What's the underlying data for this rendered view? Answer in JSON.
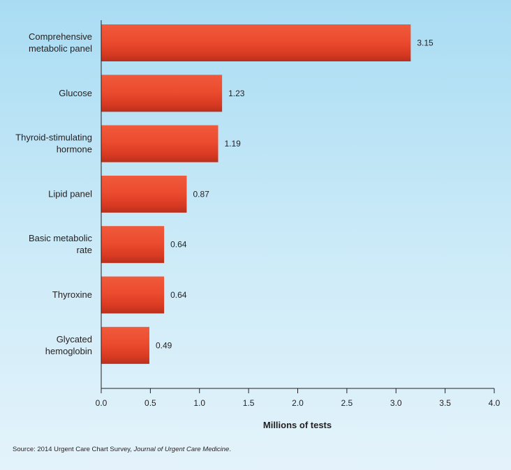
{
  "chart_data": {
    "type": "bar",
    "orientation": "horizontal",
    "categories": [
      [
        "Comprehensive",
        "metabolic panel"
      ],
      [
        "Glucose"
      ],
      [
        "Thyroid-stimulating",
        "hormone"
      ],
      [
        "Lipid panel"
      ],
      [
        "Basic metabolic",
        "rate"
      ],
      [
        "Thyroxine"
      ],
      [
        "Glycated",
        "hemoglobin"
      ]
    ],
    "values": [
      3.15,
      1.23,
      1.19,
      0.87,
      0.64,
      0.64,
      0.49
    ],
    "value_labels": [
      "3.15",
      "1.23",
      "1.19",
      "0.87",
      "0.64",
      "0.64",
      "0.49"
    ],
    "xlabel": "Millions of tests",
    "ylabel": "",
    "xlim": [
      0,
      4.0
    ],
    "x_ticks": [
      "0.0",
      "0.5",
      "1.0",
      "1.5",
      "2.0",
      "2.5",
      "3.0",
      "3.5",
      "4.0"
    ],
    "grid": false,
    "bar_color": "#e8452c"
  },
  "source": {
    "prefix": "Source: 2014 Urgent Care Chart Survey, ",
    "journal": "Journal of Urgent Care Medicine",
    "suffix": "."
  }
}
